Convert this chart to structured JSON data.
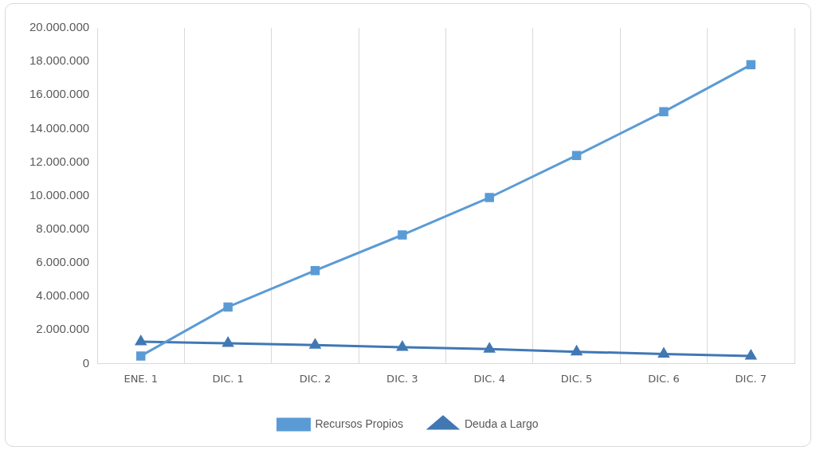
{
  "chart_data": {
    "type": "line",
    "categories": [
      "ENE. 1",
      "DIC. 1",
      "DIC. 2",
      "DIC. 3",
      "DIC. 4",
      "DIC. 5",
      "DIC. 6",
      "DIC. 7"
    ],
    "series": [
      {
        "name": "Recursos Propios",
        "color": "#5b9bd5",
        "marker": "square",
        "values": [
          450000,
          3370000,
          5540000,
          7660000,
          9890000,
          12400000,
          15000000,
          17800000
        ]
      },
      {
        "name": "Deuda a Largo",
        "color": "#4178b4",
        "marker": "triangle",
        "values": [
          1300000,
          1200000,
          1100000,
          970000,
          860000,
          700000,
          570000,
          450000
        ]
      }
    ],
    "ylim": [
      0,
      20000000
    ],
    "yticks": [
      0,
      {
        "value": 2000000,
        "label": "2.000.000"
      },
      {
        "value": 4000000,
        "label": "4.000.000"
      },
      {
        "value": 6000000,
        "label": "6.000.000"
      },
      {
        "value": 8000000,
        "label": "8.000.000"
      },
      {
        "value": 10000000,
        "label": "10.000.000"
      },
      {
        "value": 12000000,
        "label": "12.000.000"
      },
      {
        "value": 14000000,
        "label": "14.000.000"
      },
      {
        "value": 16000000,
        "label": "16.000.000"
      },
      {
        "value": 18000000,
        "label": "18.000.000"
      },
      {
        "value": 20000000,
        "label": "20.000.000"
      }
    ],
    "grid": "x",
    "legend": "bottom",
    "line_style": "solid"
  }
}
